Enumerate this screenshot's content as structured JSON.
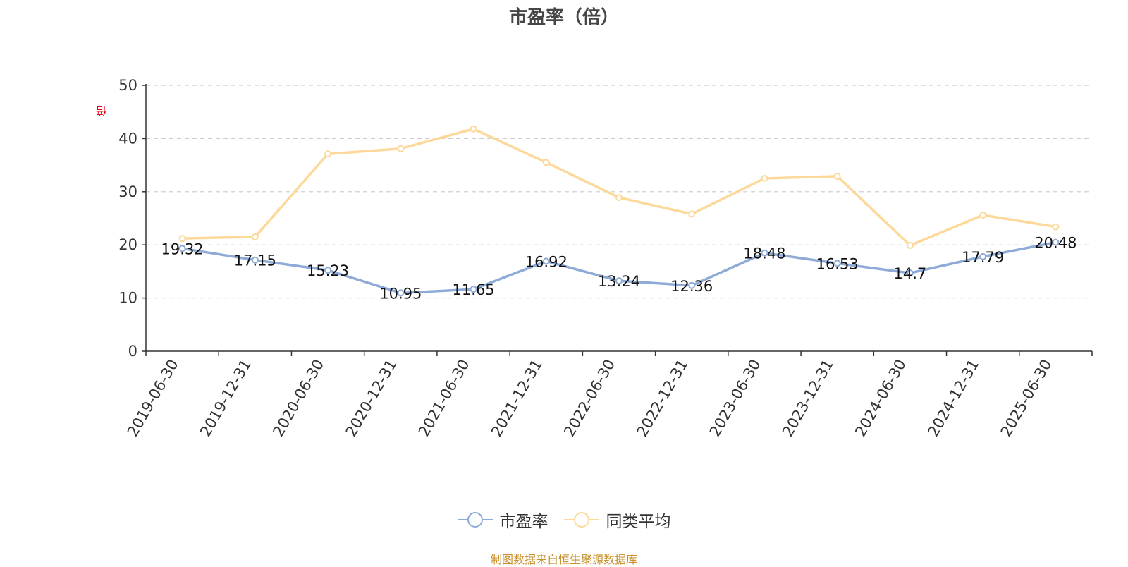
{
  "title": "市盈率（倍）",
  "unit": "倍",
  "source": "制图数据来自恒生聚源数据库",
  "chart_data": {
    "type": "line",
    "title": "市盈率（倍）",
    "ylabel": "倍",
    "ylim": [
      0,
      50
    ],
    "yticks": [
      0,
      10,
      20,
      30,
      40,
      50
    ],
    "grid": true,
    "legend_position": "bottom",
    "categories": [
      "2019-06-30",
      "2019-12-31",
      "2020-06-30",
      "2020-12-31",
      "2021-06-30",
      "2021-12-31",
      "2022-06-30",
      "2022-12-31",
      "2023-06-30",
      "2023-12-31",
      "2024-06-30",
      "2024-12-31",
      "2025-06-30"
    ],
    "series": [
      {
        "name": "市盈率",
        "color": "#8eabd8",
        "show_labels": true,
        "values": [
          19.32,
          17.15,
          15.23,
          10.95,
          11.65,
          16.92,
          13.24,
          12.36,
          18.48,
          16.53,
          14.7,
          17.79,
          20.48
        ]
      },
      {
        "name": "同类平均",
        "color": "#fcd99a",
        "show_labels": false,
        "values": [
          21.2,
          21.5,
          37.1,
          38.1,
          41.8,
          35.5,
          28.9,
          25.8,
          32.5,
          32.9,
          19.9,
          25.6,
          23.4
        ]
      }
    ]
  }
}
